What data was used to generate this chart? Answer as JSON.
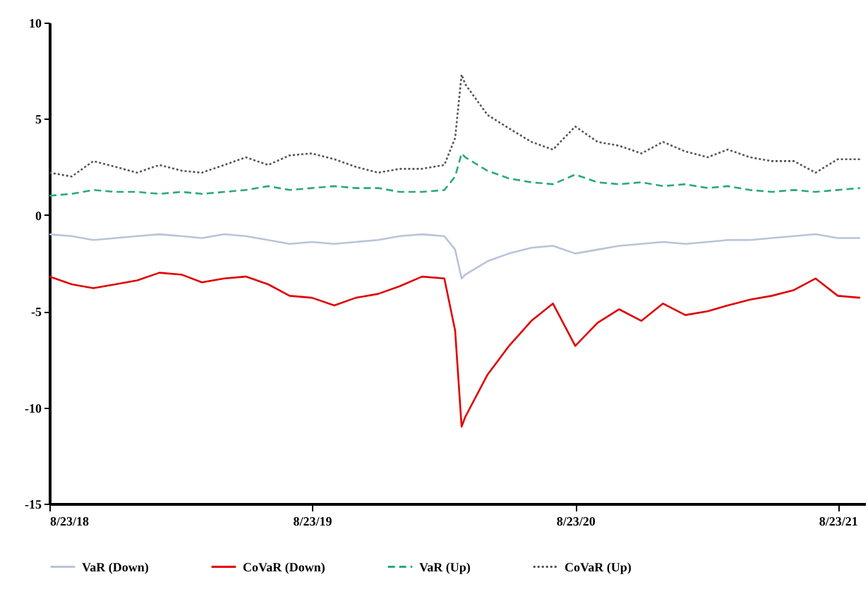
{
  "chart_data": {
    "type": "line",
    "x": [
      "2018-08-23",
      "2018-09-23",
      "2018-10-23",
      "2018-11-23",
      "2018-12-23",
      "2019-01-23",
      "2019-02-23",
      "2019-03-23",
      "2019-04-23",
      "2019-05-23",
      "2019-06-23",
      "2019-07-23",
      "2019-08-23",
      "2019-09-23",
      "2019-10-23",
      "2019-11-23",
      "2019-12-23",
      "2020-01-23",
      "2020-02-23",
      "2020-03-09",
      "2020-03-18",
      "2020-03-23",
      "2020-04-23",
      "2020-05-23",
      "2020-06-23",
      "2020-07-23",
      "2020-08-23",
      "2020-09-23",
      "2020-10-23",
      "2020-11-23",
      "2020-12-23",
      "2021-01-23",
      "2021-02-23",
      "2021-03-23",
      "2021-04-23",
      "2021-05-23",
      "2021-06-23",
      "2021-07-23",
      "2021-08-23",
      "2021-09-23"
    ],
    "series": [
      {
        "name": "VaR (Down)",
        "color": "#b8c4d8",
        "line_style": "solid",
        "values": [
          -1.0,
          -1.1,
          -1.3,
          -1.2,
          -1.1,
          -1.0,
          -1.1,
          -1.2,
          -1.0,
          -1.1,
          -1.3,
          -1.5,
          -1.4,
          -1.5,
          -1.4,
          -1.3,
          -1.1,
          -1.0,
          -1.1,
          -1.8,
          -3.3,
          -3.1,
          -2.4,
          -2.0,
          -1.7,
          -1.6,
          -2.0,
          -1.8,
          -1.6,
          -1.5,
          -1.4,
          -1.5,
          -1.4,
          -1.3,
          -1.3,
          -1.2,
          -1.1,
          -1.0,
          -1.2,
          -1.2
        ]
      },
      {
        "name": "CoVaR (Down)",
        "color": "#e00000",
        "line_style": "solid",
        "values": [
          -3.2,
          -3.6,
          -3.8,
          -3.6,
          -3.4,
          -3.0,
          -3.1,
          -3.5,
          -3.3,
          -3.2,
          -3.6,
          -4.2,
          -4.3,
          -4.7,
          -4.3,
          -4.1,
          -3.7,
          -3.2,
          -3.3,
          -6.0,
          -11.0,
          -10.5,
          -8.3,
          -6.8,
          -5.5,
          -4.6,
          -6.8,
          -5.6,
          -4.9,
          -5.5,
          -4.6,
          -5.2,
          -5.0,
          -4.7,
          -4.4,
          -4.2,
          -3.9,
          -3.3,
          -4.2,
          -4.3
        ]
      },
      {
        "name": "VaR (Up)",
        "color": "#2ca87f",
        "line_style": "dashed",
        "values": [
          1.0,
          1.1,
          1.3,
          1.2,
          1.2,
          1.1,
          1.2,
          1.1,
          1.2,
          1.3,
          1.5,
          1.3,
          1.4,
          1.5,
          1.4,
          1.4,
          1.2,
          1.2,
          1.3,
          2.0,
          3.2,
          3.0,
          2.3,
          1.9,
          1.7,
          1.6,
          2.1,
          1.7,
          1.6,
          1.7,
          1.5,
          1.6,
          1.4,
          1.5,
          1.3,
          1.2,
          1.3,
          1.2,
          1.3,
          1.4
        ]
      },
      {
        "name": "CoVaR (Up)",
        "color": "#555555",
        "line_style": "dotted",
        "values": [
          2.2,
          2.0,
          2.8,
          2.5,
          2.2,
          2.6,
          2.3,
          2.2,
          2.6,
          3.0,
          2.6,
          3.1,
          3.2,
          2.9,
          2.5,
          2.2,
          2.4,
          2.4,
          2.6,
          4.0,
          7.3,
          6.8,
          5.2,
          4.5,
          3.8,
          3.4,
          4.6,
          3.8,
          3.6,
          3.2,
          3.8,
          3.3,
          3.0,
          3.4,
          3.0,
          2.8,
          2.8,
          2.2,
          2.9,
          2.9
        ]
      }
    ],
    "ylim": [
      -15,
      10
    ],
    "yticks": [
      -15,
      -10,
      -5,
      0,
      5,
      10
    ],
    "xlim": [
      "2018-08-23",
      "2021-09-30"
    ],
    "xticks": [
      {
        "value": "2018-08-23",
        "label": "8/23/18"
      },
      {
        "value": "2019-08-23",
        "label": "8/23/19"
      },
      {
        "value": "2020-08-23",
        "label": "8/23/20"
      },
      {
        "value": "2021-08-23",
        "label": "8/23/21"
      }
    ],
    "legend": "bottom",
    "grid": false
  }
}
